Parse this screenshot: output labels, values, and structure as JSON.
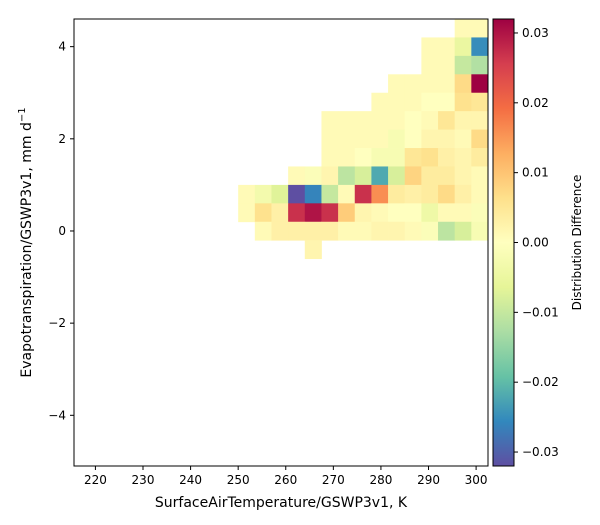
{
  "chart_data": {
    "type": "heatmap",
    "xlabel": "SurfaceAirTemperature/GSWP3v1,  K",
    "ylabel": "Evapotranspiration/GSWP3v1,  mm d",
    "ylabel_sup": "−1",
    "colorbar_label": "Distribution Difference",
    "xlim": [
      215.5,
      302.5
    ],
    "ylim": [
      -5.1,
      4.6
    ],
    "x_ticks": [
      220,
      230,
      240,
      250,
      260,
      270,
      280,
      290,
      300
    ],
    "x_tick_labels": [
      "220",
      "230",
      "240",
      "250",
      "260",
      "270",
      "280",
      "290",
      "300"
    ],
    "y_ticks": [
      -4,
      -2,
      0,
      2,
      4
    ],
    "y_tick_labels": [
      "−4",
      "−2",
      "0",
      "2",
      "4"
    ],
    "colorbar_range": [
      -0.032,
      0.032
    ],
    "colorbar_ticks": [
      -0.03,
      -0.02,
      -0.01,
      0.0,
      0.01,
      0.02,
      0.03
    ],
    "colorbar_tick_labels": [
      "−0.03",
      "−0.02",
      "−0.01",
      "0.00",
      "0.01",
      "0.02",
      "0.03"
    ],
    "colormap": "Spectral_r",
    "cell_width": 3.5,
    "cell_height": 0.4,
    "cells": [
      {
        "x0": 295.5,
        "y0": 4.2,
        "v": 0.001
      },
      {
        "x0": 299.0,
        "y0": 4.2,
        "v": 0.001
      },
      {
        "x0": 288.5,
        "y0": 3.8,
        "v": 0.001
      },
      {
        "x0": 292.0,
        "y0": 3.8,
        "v": 0.001
      },
      {
        "x0": 295.5,
        "y0": 3.8,
        "v": -0.005
      },
      {
        "x0": 299.0,
        "y0": 3.8,
        "v": -0.025
      },
      {
        "x0": 288.5,
        "y0": 3.4,
        "v": 0.001
      },
      {
        "x0": 292.0,
        "y0": 3.4,
        "v": 0.001
      },
      {
        "x0": 295.5,
        "y0": 3.4,
        "v": -0.01
      },
      {
        "x0": 299.0,
        "y0": 3.4,
        "v": -0.012
      },
      {
        "x0": 281.5,
        "y0": 3.0,
        "v": 0.001
      },
      {
        "x0": 285.0,
        "y0": 3.0,
        "v": 0.001
      },
      {
        "x0": 288.5,
        "y0": 3.0,
        "v": 0.001
      },
      {
        "x0": 292.0,
        "y0": 3.0,
        "v": 0.001
      },
      {
        "x0": 295.5,
        "y0": 3.0,
        "v": 0.007
      },
      {
        "x0": 299.0,
        "y0": 3.0,
        "v": 0.033
      },
      {
        "x0": 278.0,
        "y0": 2.6,
        "v": 0.001
      },
      {
        "x0": 281.5,
        "y0": 2.6,
        "v": 0.001
      },
      {
        "x0": 285.0,
        "y0": 2.6,
        "v": 0.001
      },
      {
        "x0": 288.5,
        "y0": 2.6,
        "v": 0.0
      },
      {
        "x0": 292.0,
        "y0": 2.6,
        "v": 0.0
      },
      {
        "x0": 295.5,
        "y0": 2.6,
        "v": 0.006
      },
      {
        "x0": 299.0,
        "y0": 2.6,
        "v": 0.005
      },
      {
        "x0": 267.5,
        "y0": 2.2,
        "v": 0.001
      },
      {
        "x0": 271.0,
        "y0": 2.2,
        "v": 0.001
      },
      {
        "x0": 274.5,
        "y0": 2.2,
        "v": 0.001
      },
      {
        "x0": 278.0,
        "y0": 2.2,
        "v": 0.001
      },
      {
        "x0": 281.5,
        "y0": 2.2,
        "v": 0.001
      },
      {
        "x0": 285.0,
        "y0": 2.2,
        "v": 0.0
      },
      {
        "x0": 288.5,
        "y0": 2.2,
        "v": 0.001
      },
      {
        "x0": 292.0,
        "y0": 2.2,
        "v": 0.005
      },
      {
        "x0": 295.5,
        "y0": 2.2,
        "v": 0.002
      },
      {
        "x0": 299.0,
        "y0": 2.2,
        "v": 0.002
      },
      {
        "x0": 267.5,
        "y0": 1.8,
        "v": 0.001
      },
      {
        "x0": 271.0,
        "y0": 1.8,
        "v": 0.001
      },
      {
        "x0": 274.5,
        "y0": 1.8,
        "v": 0.001
      },
      {
        "x0": 278.0,
        "y0": 1.8,
        "v": 0.001
      },
      {
        "x0": 281.5,
        "y0": 1.8,
        "v": -0.002
      },
      {
        "x0": 285.0,
        "y0": 1.8,
        "v": 0.0
      },
      {
        "x0": 288.5,
        "y0": 1.8,
        "v": 0.002
      },
      {
        "x0": 292.0,
        "y0": 1.8,
        "v": 0.002
      },
      {
        "x0": 295.5,
        "y0": 1.8,
        "v": 0.001
      },
      {
        "x0": 299.0,
        "y0": 1.8,
        "v": 0.007
      },
      {
        "x0": 267.5,
        "y0": 1.4,
        "v": 0.001
      },
      {
        "x0": 271.0,
        "y0": 1.4,
        "v": 0.001
      },
      {
        "x0": 274.5,
        "y0": 1.4,
        "v": 0.0
      },
      {
        "x0": 278.0,
        "y0": 1.4,
        "v": -0.002
      },
      {
        "x0": 281.5,
        "y0": 1.4,
        "v": -0.002
      },
      {
        "x0": 285.0,
        "y0": 1.4,
        "v": 0.005
      },
      {
        "x0": 288.5,
        "y0": 1.4,
        "v": 0.006
      },
      {
        "x0": 292.0,
        "y0": 1.4,
        "v": 0.003
      },
      {
        "x0": 295.5,
        "y0": 1.4,
        "v": 0.002
      },
      {
        "x0": 299.0,
        "y0": 1.4,
        "v": 0.004
      },
      {
        "x0": 260.5,
        "y0": 1.0,
        "v": 0.001
      },
      {
        "x0": 264.0,
        "y0": 1.0,
        "v": -0.001
      },
      {
        "x0": 267.5,
        "y0": 1.0,
        "v": 0.002
      },
      {
        "x0": 271.0,
        "y0": 1.0,
        "v": -0.011
      },
      {
        "x0": 274.5,
        "y0": 1.0,
        "v": -0.008
      },
      {
        "x0": 278.0,
        "y0": 1.0,
        "v": -0.022
      },
      {
        "x0": 281.5,
        "y0": 1.0,
        "v": -0.008
      },
      {
        "x0": 285.0,
        "y0": 1.0,
        "v": 0.008
      },
      {
        "x0": 288.5,
        "y0": 1.0,
        "v": 0.004
      },
      {
        "x0": 292.0,
        "y0": 1.0,
        "v": 0.004
      },
      {
        "x0": 295.5,
        "y0": 1.0,
        "v": 0.002
      },
      {
        "x0": 299.0,
        "y0": 1.0,
        "v": 0.001
      },
      {
        "x0": 250.0,
        "y0": 0.6,
        "v": 0.001
      },
      {
        "x0": 253.5,
        "y0": 0.6,
        "v": -0.003
      },
      {
        "x0": 257.0,
        "y0": 0.6,
        "v": -0.007
      },
      {
        "x0": 260.5,
        "y0": 0.6,
        "v": -0.032
      },
      {
        "x0": 264.0,
        "y0": 0.6,
        "v": -0.026
      },
      {
        "x0": 267.5,
        "y0": 0.6,
        "v": -0.01
      },
      {
        "x0": 271.0,
        "y0": 0.6,
        "v": 0.001
      },
      {
        "x0": 274.5,
        "y0": 0.6,
        "v": 0.027
      },
      {
        "x0": 278.0,
        "y0": 0.6,
        "v": 0.016
      },
      {
        "x0": 281.5,
        "y0": 0.6,
        "v": 0.004
      },
      {
        "x0": 285.0,
        "y0": 0.6,
        "v": 0.003
      },
      {
        "x0": 288.5,
        "y0": 0.6,
        "v": 0.004
      },
      {
        "x0": 292.0,
        "y0": 0.6,
        "v": 0.007
      },
      {
        "x0": 295.5,
        "y0": 0.6,
        "v": 0.003
      },
      {
        "x0": 299.0,
        "y0": 0.6,
        "v": 0.001
      },
      {
        "x0": 250.0,
        "y0": 0.2,
        "v": 0.001
      },
      {
        "x0": 253.5,
        "y0": 0.2,
        "v": 0.006
      },
      {
        "x0": 257.0,
        "y0": 0.2,
        "v": 0.003
      },
      {
        "x0": 260.5,
        "y0": 0.2,
        "v": 0.027
      },
      {
        "x0": 264.0,
        "y0": 0.2,
        "v": 0.03
      },
      {
        "x0": 267.5,
        "y0": 0.2,
        "v": 0.027
      },
      {
        "x0": 271.0,
        "y0": 0.2,
        "v": 0.009
      },
      {
        "x0": 274.5,
        "y0": 0.2,
        "v": 0.002
      },
      {
        "x0": 278.0,
        "y0": 0.2,
        "v": 0.001
      },
      {
        "x0": 281.5,
        "y0": 0.2,
        "v": 0.0
      },
      {
        "x0": 285.0,
        "y0": 0.2,
        "v": 0.0
      },
      {
        "x0": 288.5,
        "y0": 0.2,
        "v": -0.004
      },
      {
        "x0": 292.0,
        "y0": 0.2,
        "v": 0.001
      },
      {
        "x0": 295.5,
        "y0": 0.2,
        "v": 0.001
      },
      {
        "x0": 299.0,
        "y0": 0.2,
        "v": -0.001
      },
      {
        "x0": 253.5,
        "y0": -0.2,
        "v": 0.001
      },
      {
        "x0": 257.0,
        "y0": -0.2,
        "v": 0.003
      },
      {
        "x0": 260.5,
        "y0": -0.2,
        "v": 0.003
      },
      {
        "x0": 264.0,
        "y0": -0.2,
        "v": 0.003
      },
      {
        "x0": 267.5,
        "y0": -0.2,
        "v": 0.003
      },
      {
        "x0": 271.0,
        "y0": -0.2,
        "v": 0.001
      },
      {
        "x0": 274.5,
        "y0": -0.2,
        "v": 0.001
      },
      {
        "x0": 278.0,
        "y0": -0.2,
        "v": 0.002
      },
      {
        "x0": 281.5,
        "y0": -0.2,
        "v": 0.002
      },
      {
        "x0": 285.0,
        "y0": -0.2,
        "v": 0.001
      },
      {
        "x0": 288.5,
        "y0": -0.2,
        "v": -0.001
      },
      {
        "x0": 292.0,
        "y0": -0.2,
        "v": -0.011
      },
      {
        "x0": 295.5,
        "y0": -0.2,
        "v": -0.008
      },
      {
        "x0": 299.0,
        "y0": -0.2,
        "v": -0.002
      },
      {
        "x0": 264.0,
        "y0": -0.6,
        "v": 0.002
      }
    ]
  }
}
